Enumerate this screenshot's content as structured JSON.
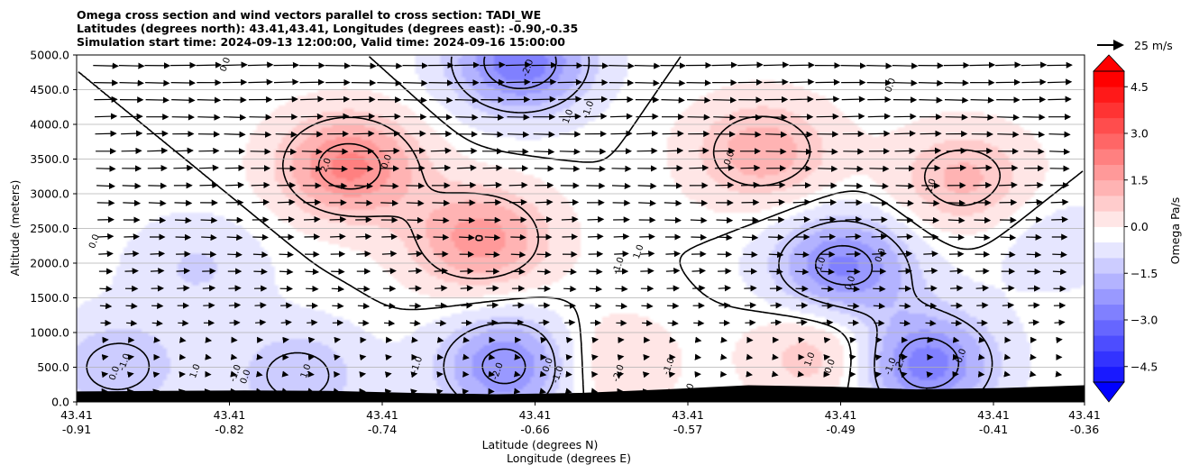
{
  "chart_data": {
    "type": "heatmap",
    "title_lines": [
      "Omega cross section and wind vectors parallel to cross section: TADI_WE",
      "Latitudes (degrees north): 43.41,43.41, Longitudes (degrees east): -0.90,-0.35",
      "Simulation start time: 2024-09-13 12:00:00, Valid time: 2024-09-16 15:00:00"
    ],
    "ylabel": "Altitude (meters)",
    "xlabel_lines": [
      "Latitude (degrees N)",
      "Longitude (degrees E)"
    ],
    "ylim": [
      0,
      5000
    ],
    "y_ticks": [
      "0.0",
      "500.0",
      "1000.0",
      "1500.0",
      "2000.0",
      "2500.0",
      "3000.0",
      "3500.0",
      "4000.0",
      "4500.0",
      "5000.0"
    ],
    "x_ticks": [
      {
        "lat": "43.41",
        "lon": "-0.91"
      },
      {
        "lat": "43.41",
        "lon": "-0.82"
      },
      {
        "lat": "43.41",
        "lon": "-0.74"
      },
      {
        "lat": "43.41",
        "lon": "-0.66"
      },
      {
        "lat": "43.41",
        "lon": "-0.57"
      },
      {
        "lat": "43.41",
        "lon": "-0.49"
      },
      {
        "lat": "43.41",
        "lon": "-0.41"
      },
      {
        "lat": "43.41",
        "lon": "-0.36"
      }
    ],
    "grid": "horizontal",
    "colorbar": {
      "label": "Omega Pa/s",
      "range": [
        -5,
        5
      ],
      "tick_labels": [
        "4.5",
        "3.0",
        "1.5",
        "0.0",
        "−1.5",
        "−3.0",
        "−4.5"
      ],
      "extend": "both",
      "colors": {
        "positive": "#ff0000",
        "negative": "#0000ff",
        "neutral": "#ffffff"
      }
    },
    "vector_key": {
      "label": "25 m/s"
    },
    "omega_centers": [
      {
        "x": 0.27,
        "y": 3400,
        "value": 2.4
      },
      {
        "x": 0.4,
        "y": 2350,
        "value": 2.0
      },
      {
        "x": 0.68,
        "y": 3600,
        "value": 1.6
      },
      {
        "x": 0.88,
        "y": 3200,
        "value": 1.4
      },
      {
        "x": 0.74,
        "y": 700,
        "value": 1.2
      },
      {
        "x": 0.44,
        "y": 4900,
        "value": -2.6
      },
      {
        "x": 0.76,
        "y": 1950,
        "value": -2.4
      },
      {
        "x": 0.43,
        "y": 520,
        "value": -2.4
      },
      {
        "x": 0.84,
        "y": 550,
        "value": -2.6
      },
      {
        "x": 0.22,
        "y": 380,
        "value": -1.2
      },
      {
        "x": 0.04,
        "y": 500,
        "value": -1.2
      },
      {
        "x": 0.12,
        "y": 1950,
        "value": -0.8
      },
      {
        "x": 0.97,
        "y": 2300,
        "value": -0.6
      },
      {
        "x": 0.52,
        "y": 550,
        "value": 0.9
      }
    ],
    "contour_labels": [
      "0.0",
      "-2.0",
      "-1.0",
      "1.0",
      "2.0",
      "0.0",
      "0.0",
      "0.0",
      "-1.0",
      "1.0",
      "0.0",
      "-1.0",
      "1.0",
      "-1.0",
      "-2.0",
      "-1.0",
      "1.0",
      "0.0",
      "-1.0",
      "0.0",
      "0.0",
      "-1.0",
      "0.0",
      "-1.0",
      "-2.0",
      "1.0",
      "1.0",
      "0.0",
      "0.0",
      "1.0",
      "-1.0",
      "-2.0",
      "0.0"
    ],
    "terrain_top_m": [
      150,
      160,
      165,
      160,
      130,
      110,
      130,
      180,
      240,
      220,
      180,
      200,
      240
    ]
  }
}
